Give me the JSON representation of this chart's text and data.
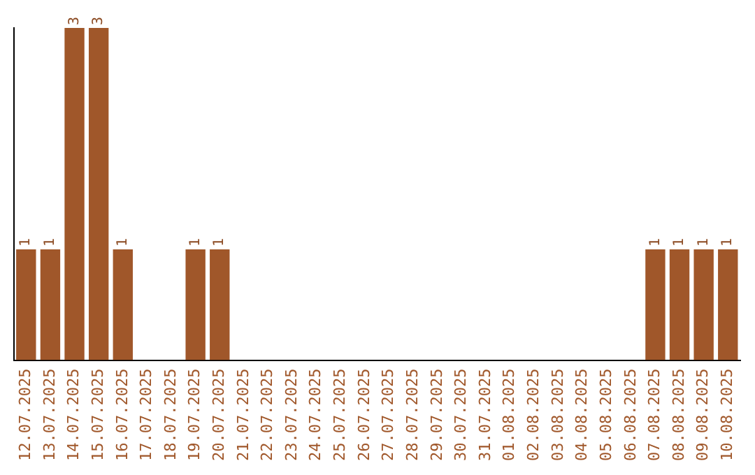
{
  "chart_data": {
    "type": "bar",
    "categories": [
      "12.07.2025",
      "13.07.2025",
      "14.07.2025",
      "15.07.2025",
      "16.07.2025",
      "17.07.2025",
      "18.07.2025",
      "19.07.2025",
      "20.07.2025",
      "21.07.2025",
      "22.07.2025",
      "23.07.2025",
      "24.07.2025",
      "25.07.2025",
      "26.07.2025",
      "27.07.2025",
      "28.07.2025",
      "29.07.2025",
      "30.07.2025",
      "31.07.2025",
      "01.08.2025",
      "02.08.2025",
      "03.08.2025",
      "04.08.2025",
      "05.08.2025",
      "06.08.2025",
      "07.08.2025",
      "08.08.2025",
      "09.08.2025",
      "10.08.2025"
    ],
    "values": [
      1,
      1,
      3,
      3,
      1,
      0,
      0,
      1,
      1,
      0,
      0,
      0,
      0,
      0,
      0,
      0,
      0,
      0,
      0,
      0,
      0,
      0,
      0,
      0,
      0,
      0,
      1,
      1,
      1,
      1
    ],
    "value_labels": [
      "1",
      "1",
      "3",
      "3",
      "1",
      null,
      null,
      "1",
      "1",
      null,
      null,
      null,
      null,
      null,
      null,
      null,
      null,
      null,
      null,
      null,
      null,
      null,
      null,
      null,
      null,
      null,
      "1",
      "1",
      "1",
      "1"
    ],
    "color": "#a0572a",
    "grid": false,
    "legend": false
  }
}
